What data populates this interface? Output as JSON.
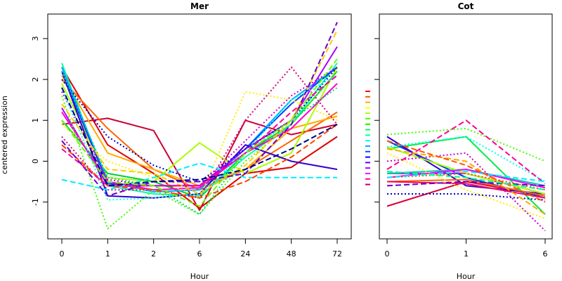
{
  "ylabel": "centered expression",
  "colors": [
    "#ff0000",
    "#ff5500",
    "#ffaa00",
    "#ffff00",
    "#aaff00",
    "#55ff00",
    "#00ff00",
    "#00ff55",
    "#00ffaa",
    "#00ffff",
    "#00aaff",
    "#0055ff",
    "#0000ff",
    "#5500ff",
    "#aa00ff",
    "#ff00ff",
    "#ff00aa",
    "#cc0044"
  ],
  "chart_data": [
    {
      "type": "line",
      "title": "Mer",
      "xlabel": "Hour",
      "categories": [
        "0",
        "1",
        "2",
        "6",
        "24",
        "48",
        "72"
      ],
      "ylim": [
        -1.9,
        3.6
      ],
      "yticks": [
        -1,
        0,
        1,
        2,
        3
      ],
      "series": [
        {
          "color": "#cc0033",
          "dash": "solid",
          "values": [
            0.9,
            1.05,
            0.75,
            -1.2,
            1.0,
            0.65,
            0.9
          ]
        },
        {
          "color": "#dd0000",
          "dash": "solid",
          "values": [
            2.3,
            0.4,
            -0.3,
            -1.15,
            -0.3,
            -0.15,
            0.6
          ]
        },
        {
          "color": "#ff6600",
          "dash": "solid",
          "values": [
            2.0,
            0.8,
            -0.2,
            -0.7,
            -0.2,
            0.5,
            1.2
          ]
        },
        {
          "color": "#ffaa00",
          "dash": "solid",
          "values": [
            2.1,
            0.2,
            -0.2,
            -0.6,
            -0.2,
            0.8,
            1.1
          ]
        },
        {
          "color": "#aaff00",
          "dash": "solid",
          "values": [
            1.9,
            -0.4,
            -0.5,
            0.45,
            -0.3,
            0.2,
            2.3
          ]
        },
        {
          "color": "#00cc44",
          "dash": "solid",
          "values": [
            1.0,
            -0.3,
            -0.5,
            -0.9,
            0.2,
            0.9,
            2.2
          ]
        },
        {
          "color": "#00ffaa",
          "dash": "solid",
          "values": [
            2.4,
            -0.6,
            -0.8,
            -0.85,
            0.1,
            0.9,
            2.4
          ]
        },
        {
          "color": "#00aaff",
          "dash": "solid",
          "values": [
            2.3,
            -0.5,
            -0.75,
            -0.7,
            0.3,
            1.5,
            2.3
          ]
        },
        {
          "color": "#0044ff",
          "dash": "solid",
          "values": [
            2.2,
            -0.55,
            -0.6,
            -0.6,
            0.3,
            1.4,
            2.3
          ]
        },
        {
          "color": "#3300cc",
          "dash": "solid",
          "values": [
            2.2,
            -0.85,
            -0.9,
            -0.8,
            0.4,
            0.0,
            -0.2
          ]
        },
        {
          "color": "#aa00ff",
          "dash": "solid",
          "values": [
            1.3,
            -0.6,
            -0.6,
            -0.6,
            0.3,
            1.0,
            2.8
          ]
        },
        {
          "color": "#ff00cc",
          "dash": "solid",
          "values": [
            1.2,
            -0.5,
            -0.7,
            -0.65,
            0.2,
            0.8,
            1.9
          ]
        },
        {
          "color": "#44ff00",
          "dash": "dotted",
          "values": [
            1.6,
            -1.65,
            -0.7,
            -1.3,
            0.0,
            0.9,
            2.2
          ]
        },
        {
          "color": "#ffee00",
          "dash": "dotted",
          "values": [
            0.9,
            0.0,
            -0.4,
            -0.9,
            1.7,
            1.5,
            1.0
          ]
        },
        {
          "color": "#dd0077",
          "dash": "dotted",
          "values": [
            0.6,
            -0.7,
            -0.7,
            -0.9,
            1.0,
            2.3,
            0.9
          ]
        },
        {
          "color": "#0000cc",
          "dash": "dotted",
          "values": [
            2.0,
            0.6,
            -0.1,
            -0.5,
            0.3,
            1.0,
            2.3
          ]
        },
        {
          "color": "#00dd88",
          "dash": "dotted",
          "values": [
            2.2,
            -0.4,
            -0.6,
            -1.3,
            0.2,
            1.0,
            1.8
          ]
        },
        {
          "color": "#cc00cc",
          "dash": "dotted",
          "values": [
            1.7,
            -0.45,
            -0.6,
            -0.6,
            0.5,
            1.6,
            2.3
          ]
        },
        {
          "color": "#00ffff",
          "dash": "dotted",
          "values": [
            1.8,
            -0.95,
            -0.9,
            -0.8,
            0.2,
            1.5,
            2.1
          ]
        },
        {
          "color": "#00eeff",
          "dash": "dashed",
          "values": [
            -0.45,
            -0.7,
            -0.4,
            -0.05,
            -0.4,
            -0.4,
            -0.4
          ]
        },
        {
          "color": "#ff4400",
          "dash": "dashed",
          "values": [
            0.4,
            -0.6,
            -0.7,
            -0.9,
            -0.5,
            0.1,
            0.9
          ]
        },
        {
          "color": "#ffcc00",
          "dash": "dashed",
          "values": [
            1.4,
            -0.2,
            -0.3,
            -0.8,
            -0.1,
            1.0,
            3.2
          ]
        },
        {
          "color": "#6600cc",
          "dash": "dashed",
          "values": [
            0.5,
            -0.85,
            -0.5,
            -0.5,
            -0.3,
            0.9,
            3.4
          ]
        },
        {
          "color": "#ff0099",
          "dash": "dashed",
          "values": [
            0.3,
            -0.6,
            -0.6,
            -0.6,
            0.2,
            1.2,
            2.1
          ]
        },
        {
          "color": "#000088",
          "dash": "dashed",
          "values": [
            1.8,
            -0.6,
            -0.5,
            -0.45,
            -0.2,
            0.3,
            0.9
          ]
        },
        {
          "color": "#66ff00",
          "dash": "dashed",
          "values": [
            1.0,
            -0.5,
            -0.6,
            -1.1,
            0.2,
            1.0,
            2.5
          ]
        }
      ]
    },
    {
      "type": "line",
      "title": "Cot",
      "xlabel": "Hour",
      "categories": [
        "0",
        "1",
        "6"
      ],
      "ylim": [
        -1.9,
        3.6
      ],
      "series": [
        {
          "color": "#dd0033",
          "dash": "solid",
          "values": [
            -1.1,
            -0.5,
            -0.85
          ]
        },
        {
          "color": "#00ee44",
          "dash": "solid",
          "values": [
            0.3,
            0.6,
            -1.3
          ]
        },
        {
          "color": "#0033ff",
          "dash": "solid",
          "values": [
            0.5,
            -0.4,
            -0.9
          ]
        },
        {
          "color": "#3300cc",
          "dash": "solid",
          "values": [
            0.6,
            -0.6,
            -0.8
          ]
        },
        {
          "color": "#aa00ff",
          "dash": "solid",
          "values": [
            -0.3,
            -0.3,
            -0.8
          ]
        },
        {
          "color": "#ff6600",
          "dash": "solid",
          "values": [
            -0.5,
            -0.45,
            -0.85
          ]
        },
        {
          "color": "#00ccaa",
          "dash": "solid",
          "values": [
            -0.3,
            -0.2,
            -0.6
          ]
        },
        {
          "color": "#ff0066",
          "dash": "solid",
          "values": [
            -0.5,
            -0.55,
            -0.9
          ]
        },
        {
          "color": "#aaff00",
          "dash": "solid",
          "values": [
            0.35,
            -0.3,
            -0.8
          ]
        },
        {
          "color": "#ff00ff",
          "dash": "solid",
          "values": [
            -0.4,
            -0.2,
            -0.65
          ]
        },
        {
          "color": "#44ff00",
          "dash": "dotted",
          "values": [
            0.65,
            0.8,
            0.0
          ]
        },
        {
          "color": "#0000cc",
          "dash": "dotted",
          "values": [
            -0.8,
            -0.8,
            -0.95
          ]
        },
        {
          "color": "#cc00cc",
          "dash": "dotted",
          "values": [
            0.0,
            0.2,
            -1.7
          ]
        },
        {
          "color": "#ffee00",
          "dash": "dotted",
          "values": [
            0.2,
            -0.7,
            -1.4
          ]
        },
        {
          "color": "#00ffff",
          "dash": "dotted",
          "values": [
            0.35,
            0.6,
            -0.5
          ]
        },
        {
          "color": "#ff4400",
          "dash": "dotted",
          "values": [
            -0.4,
            -0.3,
            -0.7
          ]
        },
        {
          "color": "#ff0099",
          "dash": "dashed",
          "values": [
            -0.2,
            1.0,
            -0.55
          ]
        },
        {
          "color": "#00eeff",
          "dash": "dashed",
          "values": [
            -0.4,
            -0.25,
            -0.5
          ]
        },
        {
          "color": "#ffaa00",
          "dash": "dashed",
          "values": [
            0.3,
            0.0,
            -1.3
          ]
        },
        {
          "color": "#ff5500",
          "dash": "dashed",
          "values": [
            0.5,
            -0.1,
            -1.0
          ]
        },
        {
          "color": "#6600cc",
          "dash": "dashed",
          "values": [
            -0.6,
            -0.5,
            -0.6
          ]
        },
        {
          "color": "#00ff88",
          "dash": "dashed",
          "values": [
            -0.25,
            -0.4,
            -0.7
          ]
        }
      ]
    }
  ]
}
